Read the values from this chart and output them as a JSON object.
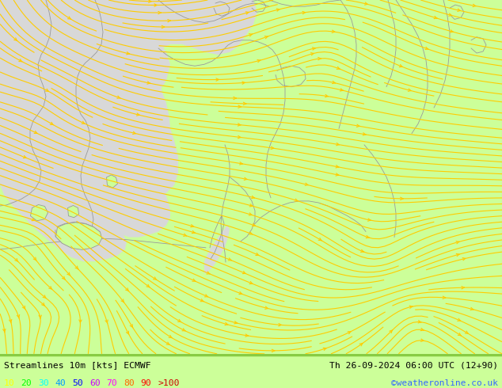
{
  "title_left": "Streamlines 10m [kts] ECMWF",
  "title_right": "Th 26-09-2024 06:00 UTC (12+90)",
  "credit": "©weatheronline.co.uk",
  "bg_color": "#ccff99",
  "sea_color": "#d8d8d8",
  "border_color": "#999999",
  "streamline_color_yellow": "#ffcc00",
  "streamline_color_green": "#44cc44",
  "legend_values": [
    "10",
    "20",
    "30",
    "40",
    "50",
    "60",
    "70",
    "80",
    "90",
    ">100"
  ],
  "legend_colors": [
    "#ffff00",
    "#00ff00",
    "#00ffff",
    "#0099ff",
    "#0000ff",
    "#cc00ff",
    "#ff00ff",
    "#ff6600",
    "#ff0000",
    "#cc0000"
  ],
  "figsize": [
    6.34,
    4.9
  ],
  "dpi": 100,
  "bottom_bar_height": 0.088
}
